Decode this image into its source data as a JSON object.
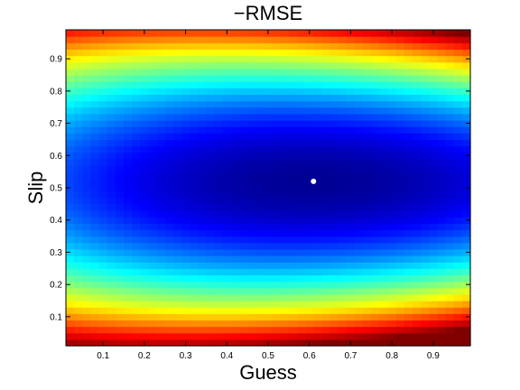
{
  "chart_data": {
    "type": "heatmap",
    "title": "−RMSE",
    "xlabel": "Guess",
    "ylabel": "Slip",
    "xlim": [
      0.01,
      0.99
    ],
    "ylim": [
      0.01,
      0.99
    ],
    "grid_steps": 49,
    "x_ticks": [
      0.1,
      0.2,
      0.3,
      0.4,
      0.5,
      0.6,
      0.7,
      0.8,
      0.9
    ],
    "y_ticks": [
      0.1,
      0.2,
      0.3,
      0.4,
      0.5,
      0.6,
      0.7,
      0.8,
      0.9
    ],
    "x_tick_labels": [
      "0.1",
      "0.2",
      "0.3",
      "0.4",
      "0.5",
      "0.6",
      "0.7",
      "0.8",
      "0.9"
    ],
    "y_tick_labels": [
      "0.1",
      "0.2",
      "0.3",
      "0.4",
      "0.5",
      "0.6",
      "0.7",
      "0.8",
      "0.9"
    ],
    "colormap": "jet",
    "grid": false,
    "minimum_marker": {
      "x": 0.61,
      "y": 0.52,
      "color": "#ffffff"
    }
  }
}
